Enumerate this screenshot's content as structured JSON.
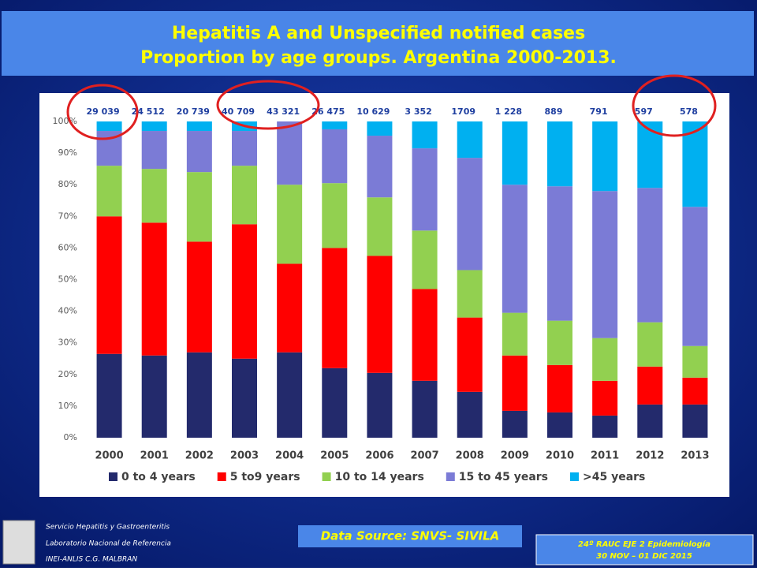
{
  "chart_data": {
    "type": "stacked_bar_percent",
    "title": "Hepatitis A and Unspecified notified cases",
    "subtitle": "Proportion by age groups.   Argentina 2000-2013.",
    "categories": [
      "2000",
      "2001",
      "2002",
      "2003",
      "2004",
      "2005",
      "2006",
      "2007",
      "2008",
      "2009",
      "2010",
      "2011",
      "2012",
      "2013"
    ],
    "totals": [
      "29 039",
      "24 512",
      "20 739",
      "40 709",
      "43 321",
      "26 475",
      "10 629",
      "3 352",
      "1709",
      "1 228",
      "889",
      "791",
      "597",
      "578"
    ],
    "series": [
      {
        "name": "0 to 4 years",
        "color": "#232a6c",
        "values": [
          26.5,
          26,
          27,
          25,
          27,
          22,
          20.5,
          18,
          14.5,
          8.5,
          8,
          7,
          10.5,
          10.5
        ]
      },
      {
        "name": "5 to9 years",
        "color": "#ff0000",
        "values": [
          43.5,
          42,
          35,
          42.5,
          28,
          38,
          37,
          29,
          23.5,
          17.5,
          15,
          11,
          12,
          8.5
        ]
      },
      {
        "name": "10 to 14 years",
        "color": "#92d050",
        "values": [
          16,
          17,
          22,
          18.5,
          25,
          20.5,
          18.5,
          18.5,
          15,
          13.5,
          14,
          13.5,
          14,
          10
        ]
      },
      {
        "name": "15 to 45 years",
        "color": "#7b7bd6",
        "values": [
          11,
          12,
          13,
          11,
          20,
          17,
          19.5,
          26,
          35.5,
          40.5,
          42.5,
          46.5,
          42.5,
          44
        ]
      },
      {
        "name": ">45 years",
        "color": "#00b0f0",
        "values": [
          3,
          3,
          3,
          3,
          0,
          2.5,
          4.5,
          8.5,
          11.5,
          20,
          20.5,
          22,
          21,
          27
        ]
      }
    ],
    "ylim": [
      0,
      100
    ],
    "yticks": [
      {
        "value": 0,
        "label": "0%"
      },
      {
        "value": 10,
        "label": "10%"
      },
      {
        "value": 20,
        "label": "20%"
      },
      {
        "value": 30,
        "label": "30%"
      },
      {
        "value": 40,
        "label": "40%"
      },
      {
        "value": 50,
        "label": "50%"
      },
      {
        "value": 60,
        "label": "60%"
      },
      {
        "value": 70,
        "label": "70%"
      },
      {
        "value": 80,
        "label": "80%"
      },
      {
        "value": 90,
        "label": "90%"
      },
      {
        "value": 100,
        "label": "100%"
      }
    ],
    "grid": false
  },
  "footer": {
    "institution": [
      "Servicio Hepatitis y Gastroenteritis",
      "Laboratorio Nacional de Referencia",
      "INEI-ANLIS C.G. MALBRAN"
    ],
    "source": "Data Source: SNVS- SIVILA",
    "event": [
      "24º RAUC EJE 2  Epidemiología",
      "30 NOV – 01 DIC  2015"
    ]
  }
}
